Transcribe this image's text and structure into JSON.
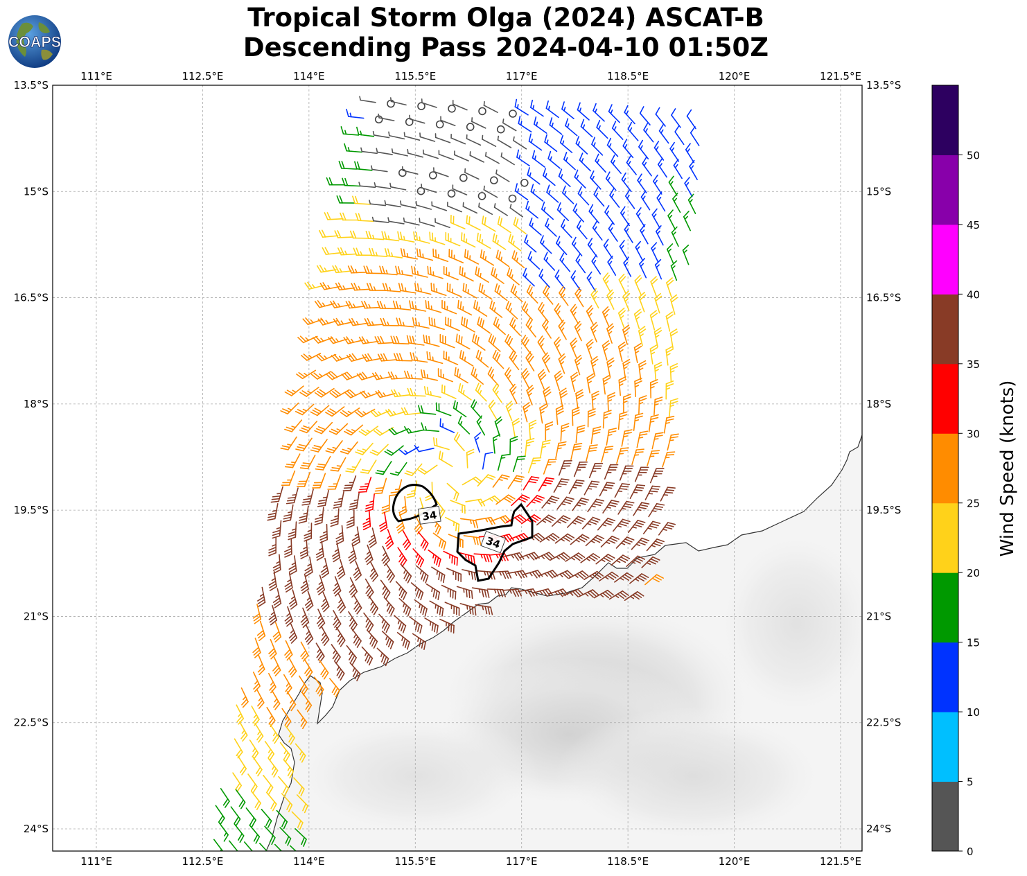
{
  "title": {
    "line1": "Tropical Storm Olga (2024) ASCAT-B",
    "line2": "Descending Pass 2024-04-10 01:50Z"
  },
  "logo": {
    "text": "COAPS",
    "icon": "globe-logo-icon"
  },
  "map": {
    "lon_range": [
      110.4,
      121.8
    ],
    "lat_range": [
      -24.3,
      -13.5
    ],
    "lon_ticks": [
      {
        "value": 111,
        "label": "111°E"
      },
      {
        "value": 112.5,
        "label": "112.5°E"
      },
      {
        "value": 114,
        "label": "114°E"
      },
      {
        "value": 115.5,
        "label": "115.5°E"
      },
      {
        "value": 117,
        "label": "117°E"
      },
      {
        "value": 118.5,
        "label": "118.5°E"
      },
      {
        "value": 120,
        "label": "120°E"
      },
      {
        "value": 121.5,
        "label": "121.5°E"
      }
    ],
    "lat_ticks": [
      {
        "value": -13.5,
        "label": "13.5°S"
      },
      {
        "value": -15,
        "label": "15°S"
      },
      {
        "value": -16.5,
        "label": "16.5°S"
      },
      {
        "value": -18,
        "label": "18°S"
      },
      {
        "value": -19.5,
        "label": "19.5°S"
      },
      {
        "value": -21,
        "label": "21°S"
      },
      {
        "value": -22.5,
        "label": "22.5°S"
      },
      {
        "value": -24,
        "label": "24°S"
      }
    ],
    "grid": true,
    "storm_center": {
      "lon": 116.0,
      "lat": -19.0
    },
    "contour_labels": [
      {
        "text": "34",
        "lon": 115.7,
        "lat": -19.57
      },
      {
        "text": "34",
        "lon": 116.6,
        "lat": -19.95
      }
    ]
  },
  "colorbar": {
    "label": "Wind Speed (knots)",
    "ticks": [
      "0",
      "5",
      "10",
      "15",
      "20",
      "25",
      "30",
      "35",
      "40",
      "45",
      "50"
    ],
    "colors": [
      "#555555",
      "#00bfff",
      "#0033ff",
      "#009900",
      "#ffd21a",
      "#ff8c00",
      "#ff0000",
      "#883b26",
      "#ff00ff",
      "#8800aa",
      "#2d0060"
    ]
  }
}
